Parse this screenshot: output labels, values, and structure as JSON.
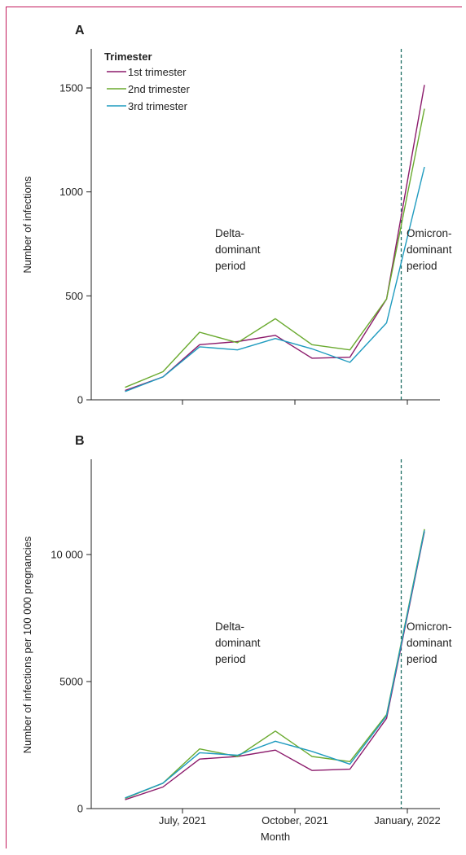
{
  "colors": {
    "trimester1": "#8b1a6b",
    "trimester2": "#6aaa2f",
    "trimester3": "#1f9bbf",
    "divider": "#1e6e64",
    "frame": "#c2185b"
  },
  "x_tick_labels": [
    "July, 2021",
    "October, 2021",
    "January, 2022"
  ],
  "xlabel": "Month",
  "chart_data": [
    {
      "type": "line",
      "panel": "A",
      "title": "",
      "xlabel": "",
      "ylabel": "Number of infections",
      "ylim": [
        0,
        1500
      ],
      "yticks": [
        0,
        500,
        1000,
        1500
      ],
      "ytick_labels": [
        "0",
        "500",
        "1000",
        "1500"
      ],
      "x": [
        "2021-05-15",
        "2021-06-15",
        "2021-07-15",
        "2021-08-15",
        "2021-09-15",
        "2021-10-15",
        "2021-11-15",
        "2021-12-15",
        "2022-01-15"
      ],
      "series": [
        {
          "name": "1st trimester",
          "values": [
            45,
            110,
            265,
            280,
            310,
            200,
            205,
            485,
            1515
          ]
        },
        {
          "name": "2nd trimester",
          "values": [
            60,
            135,
            325,
            275,
            390,
            265,
            240,
            485,
            1400
          ]
        },
        {
          "name": "3rd trimester",
          "values": [
            40,
            110,
            255,
            240,
            295,
            245,
            180,
            370,
            1120
          ]
        }
      ],
      "legend": {
        "title": "Trimester",
        "placement": "top-left"
      },
      "annotations": [
        {
          "lines": [
            "Delta-",
            "dominant",
            "period"
          ]
        },
        {
          "lines": [
            "Omicron-",
            "dominant",
            "period"
          ]
        }
      ],
      "divider_date": "2021-12-27"
    },
    {
      "type": "line",
      "panel": "B",
      "title": "",
      "xlabel": "Month",
      "ylabel": "Number of infections per 100 000 pregnancies",
      "ylim": [
        0,
        10000
      ],
      "yticks": [
        0,
        5000,
        10000
      ],
      "ytick_labels": [
        "0",
        "5000",
        "10 000"
      ],
      "x": [
        "2021-05-15",
        "2021-06-15",
        "2021-07-15",
        "2021-08-15",
        "2021-09-15",
        "2021-10-15",
        "2021-11-15",
        "2021-12-15",
        "2022-01-15"
      ],
      "series": [
        {
          "name": "1st trimester",
          "values": [
            350,
            850,
            1950,
            2050,
            2300,
            1500,
            1550,
            3550,
            10900
          ]
        },
        {
          "name": "2nd trimester",
          "values": [
            400,
            1000,
            2350,
            2050,
            3050,
            2050,
            1850,
            3700,
            11000
          ]
        },
        {
          "name": "3rd trimester",
          "values": [
            420,
            1000,
            2200,
            2100,
            2650,
            2250,
            1750,
            3650,
            10950
          ]
        }
      ],
      "annotations": [
        {
          "lines": [
            "Delta-",
            "dominant",
            "period"
          ]
        },
        {
          "lines": [
            "Omicron-",
            "dominant",
            "period"
          ]
        }
      ],
      "divider_date": "2021-12-27"
    }
  ]
}
